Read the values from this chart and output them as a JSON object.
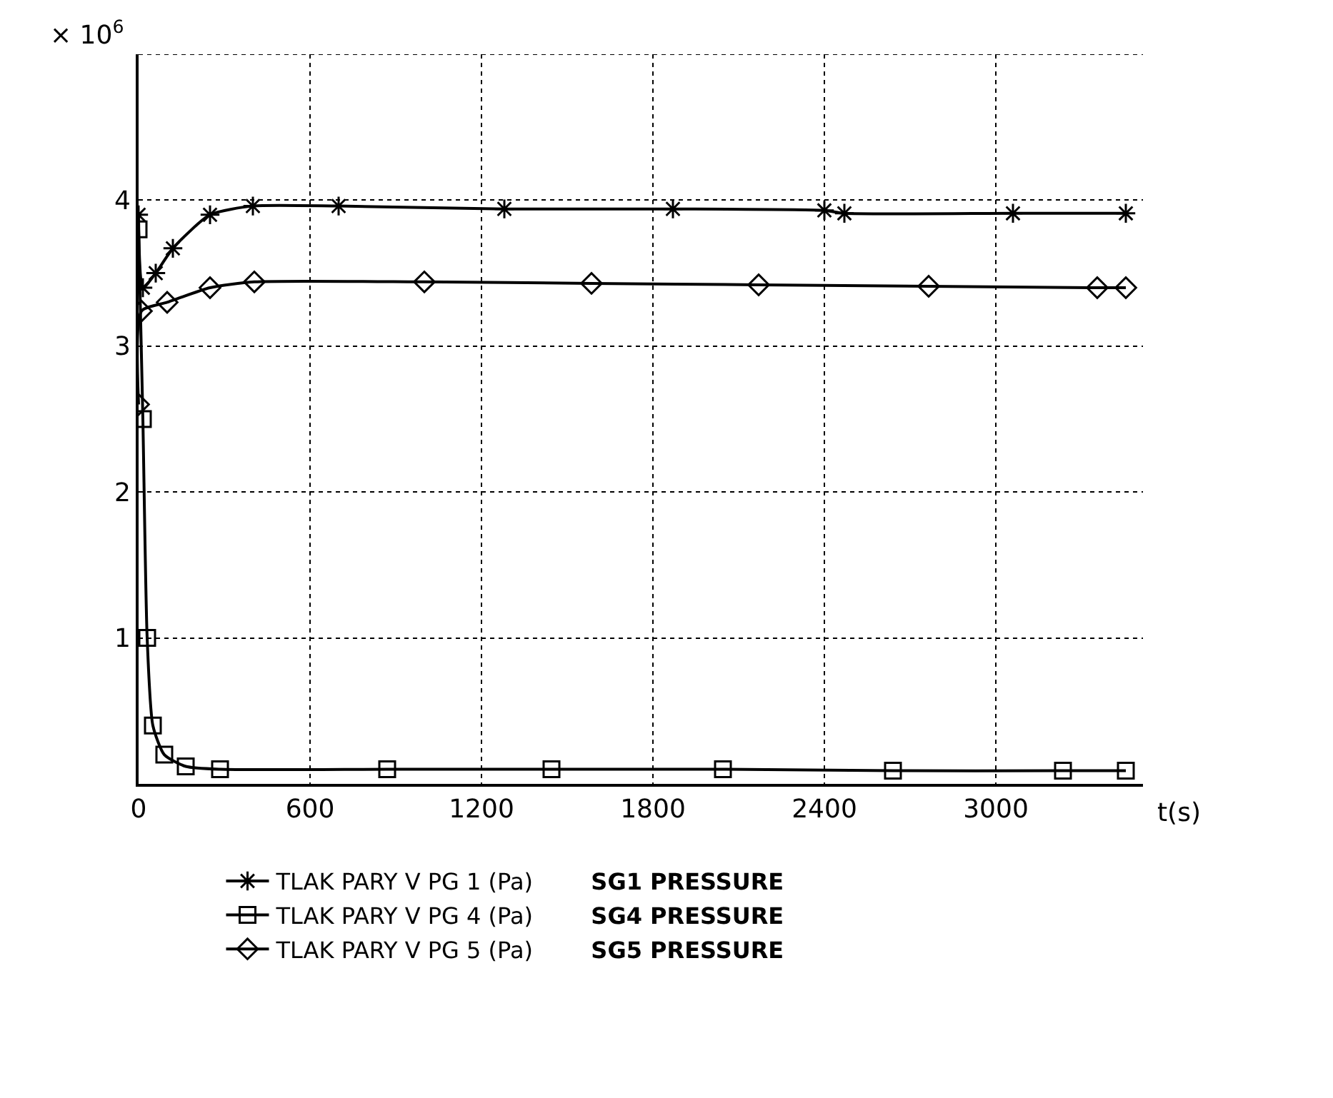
{
  "chart_data": {
    "type": "line",
    "ylabel": "× 10$^{6}$",
    "xlabel": "t(s)",
    "xlim": [
      0,
      3515
    ],
    "ylim": [
      0,
      5
    ],
    "xticks": [
      0,
      600,
      1200,
      1800,
      2400,
      3000
    ],
    "yticks": [
      {
        "value": 0,
        "label": null
      },
      1,
      2,
      3,
      4,
      {
        "value": 5,
        "label": null
      }
    ],
    "grid": true,
    "legend": "bottom",
    "line_style": "solid",
    "series": [
      {
        "name": "TLAK PARY V PG 1 (Pa)",
        "color": "#000000",
        "marker": "cross",
        "x": [
          0,
          15,
          60,
          120,
          250,
          400,
          700,
          1280,
          1870,
          2400,
          2470,
          3060,
          3455
        ],
        "values": [
          3.9,
          3.4,
          3.5,
          3.67,
          3.9,
          3.96,
          3.96,
          3.94,
          3.94,
          3.93,
          3.91,
          3.91,
          3.91
        ]
      },
      {
        "name": "TLAK PARY V PG 4 (Pa)",
        "color": "#000000",
        "marker": "square",
        "x": [
          0,
          15,
          30,
          50,
          90,
          165,
          285,
          870,
          1445,
          2045,
          2640,
          3235,
          3455
        ],
        "values": [
          3.8,
          2.5,
          1.0,
          0.4,
          0.2,
          0.12,
          0.1,
          0.1,
          0.1,
          0.1,
          0.09,
          0.09,
          0.09
        ]
      },
      {
        "name": "TLAK PARY V PG 5 (Pa)",
        "color": "#000000",
        "marker": "diamond",
        "x": [
          0,
          10,
          100,
          250,
          405,
          1000,
          1585,
          2170,
          2765,
          3355,
          3455
        ],
        "values": [
          2.6,
          3.24,
          3.3,
          3.4,
          3.44,
          3.44,
          3.43,
          3.42,
          3.41,
          3.4,
          3.4
        ]
      }
    ],
    "annotations": [
      "SG1 PRESSURE",
      "SG4 PRESSURE",
      "SG5 PRESSURE"
    ]
  }
}
